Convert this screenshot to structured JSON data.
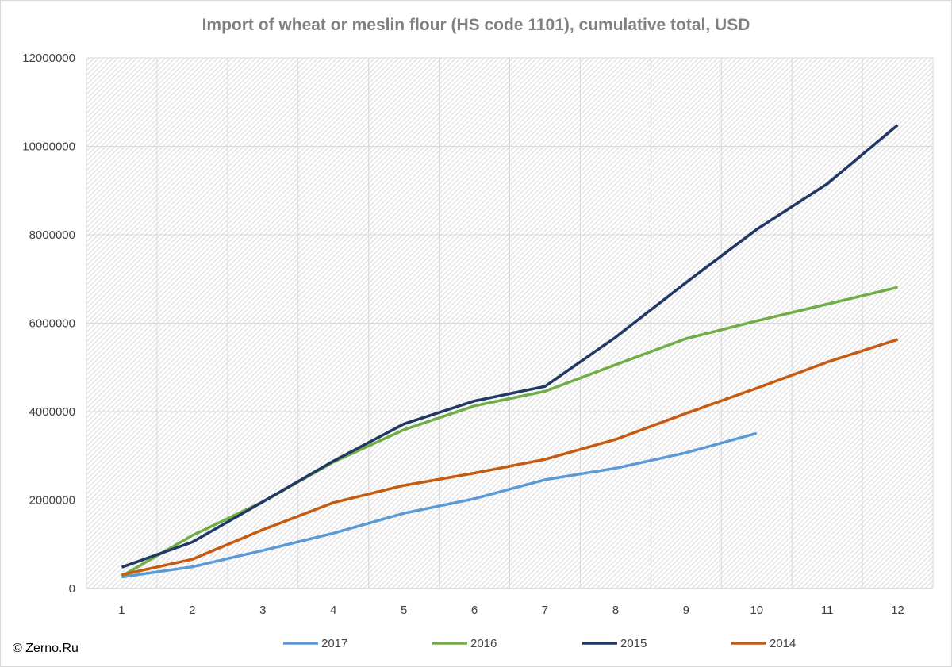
{
  "chart_data": {
    "type": "line",
    "title": "Import of wheat or meslin flour (HS code 1101), cumulative total, USD",
    "xlabel": "",
    "ylabel": "",
    "categories": [
      "1",
      "2",
      "3",
      "4",
      "5",
      "6",
      "7",
      "8",
      "9",
      "10",
      "11",
      "12"
    ],
    "ylim": [
      0,
      12000000
    ],
    "y_ticks": [
      0,
      2000000,
      4000000,
      6000000,
      8000000,
      10000000,
      12000000
    ],
    "y_tick_labels": [
      "0",
      "2000000",
      "4000000",
      "6000000",
      "8000000",
      "10000000",
      "12000000"
    ],
    "grid": true,
    "legend_position": "bottom",
    "series": [
      {
        "name": "2017",
        "color": "#5b9bd5",
        "values": [
          260000,
          490000,
          860000,
          1250000,
          1700000,
          2030000,
          2460000,
          2720000,
          3070000,
          3510000,
          null,
          null
        ]
      },
      {
        "name": "2016",
        "color": "#70ad47",
        "values": [
          280000,
          1200000,
          1960000,
          2860000,
          3590000,
          4130000,
          4460000,
          5060000,
          5650000,
          6050000,
          6430000,
          6810000
        ]
      },
      {
        "name": "2015",
        "color": "#203864",
        "values": [
          480000,
          1050000,
          1960000,
          2880000,
          3720000,
          4240000,
          4570000,
          5680000,
          6920000,
          8120000,
          9150000,
          10480000
        ]
      },
      {
        "name": "2014",
        "color": "#c55a11",
        "values": [
          310000,
          660000,
          1330000,
          1940000,
          2330000,
          2610000,
          2920000,
          3370000,
          3960000,
          4530000,
          5120000,
          5630000
        ]
      }
    ]
  },
  "footer": {
    "copyright": "© Zerno.Ru"
  }
}
